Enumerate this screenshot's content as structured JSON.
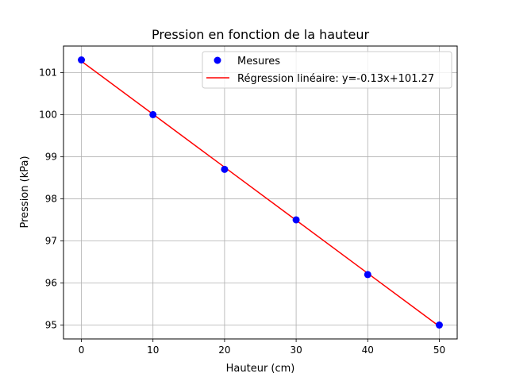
{
  "chart_data": {
    "type": "scatter",
    "title": "Pression en fonction de la hauteur",
    "xlabel": "Hauteur (cm)",
    "ylabel": "Pression (kPa)",
    "xlim": [
      -2.5,
      52.5
    ],
    "ylim": [
      94.67,
      101.63
    ],
    "grid": true,
    "legend_position": "top-right",
    "x_ticks": [
      0,
      10,
      20,
      30,
      40,
      50
    ],
    "y_ticks": [
      95,
      96,
      97,
      98,
      99,
      100,
      101
    ],
    "series": [
      {
        "name": "Mesures",
        "kind": "scatter",
        "color": "#0000ff",
        "x": [
          0,
          10,
          20,
          30,
          40,
          50
        ],
        "y": [
          101.3,
          100.0,
          98.7,
          97.5,
          96.2,
          95.0
        ]
      },
      {
        "name": "Régression linéaire: y=-0.13x+101.27",
        "kind": "line",
        "color": "#ff0000",
        "x": [
          0,
          10,
          20,
          30,
          40,
          50
        ],
        "y": [
          101.27,
          100.01,
          98.75,
          97.49,
          96.23,
          94.97
        ]
      }
    ]
  }
}
